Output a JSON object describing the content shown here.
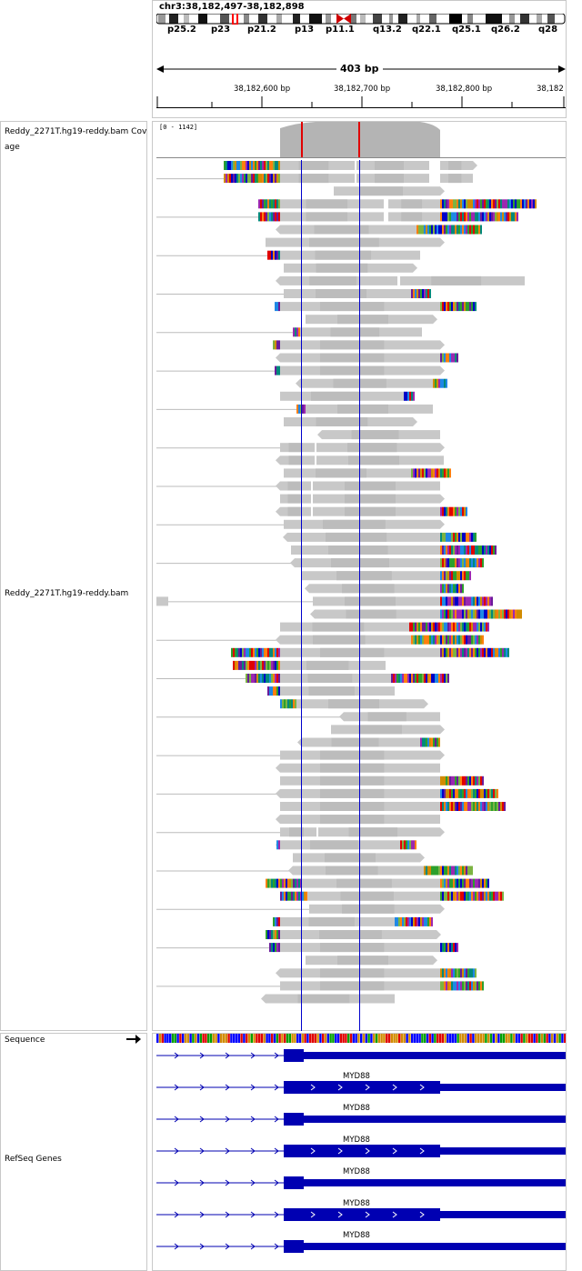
{
  "locus": "chr3:38,182,497-38,182,898",
  "cytobands": [
    "p25.2",
    "p23",
    "p21.2",
    "p13",
    "p11.1",
    "q13.2",
    "q22.1",
    "q25.1",
    "q26.2",
    "q28"
  ],
  "span_label": "403 bp",
  "ruler_ticks": [
    "38,182,600 bp",
    "38,182,700 bp",
    "38,182,800 bp",
    "38,182"
  ],
  "coverage_track_name": "Reddy_2271T.hg19-reddy.bam Cov",
  "coverage_track_name_wrap": "age",
  "coverage_range": "[0 - 1142]",
  "alignment_track_name": "Reddy_2271T.hg19-reddy.bam",
  "sequence_track_name": "Sequence",
  "refseq_track_name": "RefSeq Genes",
  "gene_names": [
    "MYD88",
    "MYD88",
    "MYD88",
    "MYD88",
    "MYD88",
    "MYD88"
  ],
  "colors": {
    "read_gray": "#c8c8c8",
    "gene_blue": "#0000b2",
    "mismatch_red": "#e00000",
    "track_border": "#c8c8c8"
  }
}
